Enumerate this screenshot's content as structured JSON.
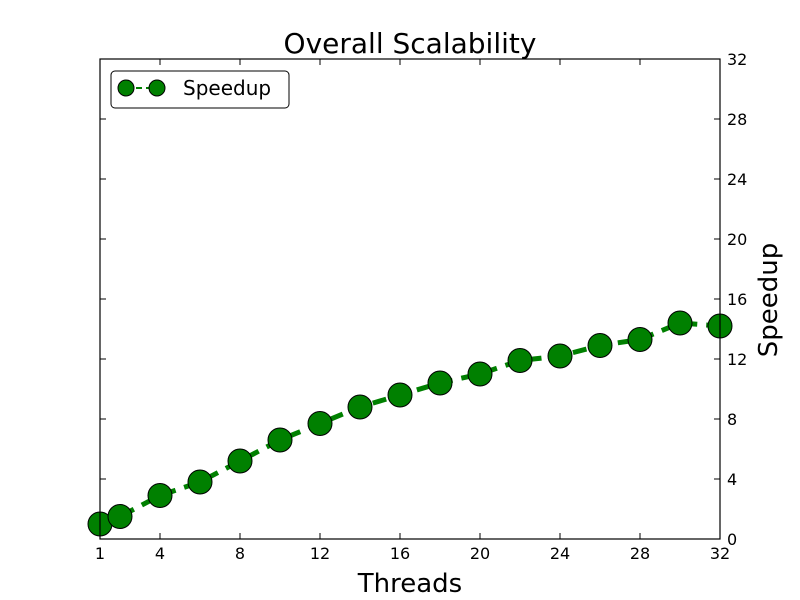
{
  "colors": {
    "series": "#008000",
    "marker_edge": "#000000",
    "axes": "#000000",
    "background": "#ffffff"
  },
  "chart_data": {
    "type": "line",
    "title": "Overall Scalability",
    "xlabel": "Threads",
    "ylabel": "Speedup",
    "xlim": [
      1,
      32
    ],
    "ylim": [
      0,
      32
    ],
    "x_ticks": [
      1,
      4,
      8,
      12,
      16,
      20,
      24,
      28,
      32
    ],
    "y_ticks": [
      0,
      4,
      8,
      12,
      16,
      20,
      24,
      28,
      32
    ],
    "y_axis_side": "right",
    "grid": false,
    "legend": {
      "position": "top-left",
      "entries": [
        "Speedup"
      ]
    },
    "line_style": "dashed",
    "marker": "circle",
    "series": [
      {
        "name": "Speedup",
        "x": [
          1,
          2,
          4,
          6,
          8,
          10,
          12,
          14,
          16,
          18,
          20,
          22,
          24,
          26,
          28,
          30,
          32
        ],
        "y": [
          1.0,
          1.5,
          2.9,
          3.8,
          5.2,
          6.6,
          7.7,
          8.8,
          9.6,
          10.4,
          11.0,
          11.9,
          12.2,
          12.9,
          13.3,
          14.4,
          14.2
        ]
      }
    ]
  }
}
